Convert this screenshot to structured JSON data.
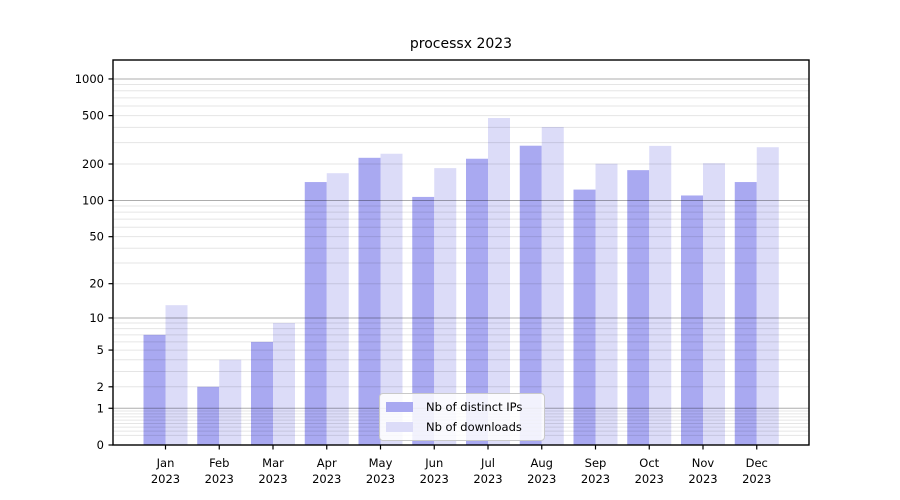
{
  "chart_data": {
    "type": "bar",
    "title": "processx 2023",
    "categories": [
      "Jan 2023",
      "Feb 2023",
      "Mar 2023",
      "Apr 2023",
      "May 2023",
      "Jun 2023",
      "Jul 2023",
      "Aug 2023",
      "Sep 2023",
      "Oct 2023",
      "Nov 2023",
      "Dec 2023"
    ],
    "series": [
      {
        "name": "Nb of distinct IPs",
        "color": "#a9a9f1",
        "values": [
          7,
          2,
          6,
          142,
          225,
          107,
          221,
          283,
          123,
          178,
          110,
          142
        ]
      },
      {
        "name": "Nb of downloads",
        "color": "#dcdcf8",
        "values": [
          13,
          4,
          9,
          168,
          243,
          185,
          478,
          403,
          201,
          282,
          203,
          275
        ]
      }
    ],
    "xlabel": "",
    "ylabel": "",
    "yscale": "log1p",
    "yticks": [
      0,
      1,
      2,
      5,
      10,
      20,
      50,
      100,
      200,
      500,
      1000
    ],
    "ylim": [
      0,
      1430
    ],
    "grid": true,
    "minor_grid": true,
    "legend_position": "lower center"
  }
}
